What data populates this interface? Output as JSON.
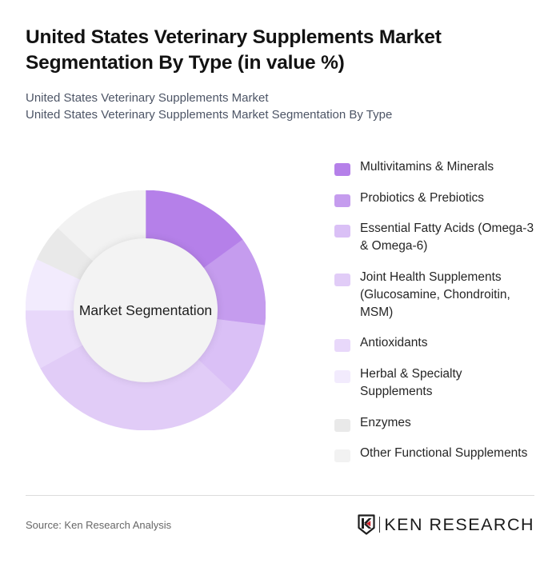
{
  "header": {
    "title": "United States Veterinary Supplements Market Segmentation By Type (in value %)",
    "subtitle_line1": "United States Veterinary Supplements Market",
    "subtitle_line2": "United States Veterinary Supplements Market Segmentation By Type"
  },
  "chart": {
    "center_label": "Market Segmentation"
  },
  "legend": {
    "items": [
      {
        "label": "Multivitamins & Minerals",
        "color": "#b580e9"
      },
      {
        "label": "Probiotics & Prebiotics",
        "color": "#c59cee"
      },
      {
        "label": "Essential Fatty Acids (Omega-3 & Omega-6)",
        "color": "#dac0f6"
      },
      {
        "label": "Joint Health Supplements (Glucosamine, Chondroitin, MSM)",
        "color": "#e1ccf7"
      },
      {
        "label": "Antioxidants",
        "color": "#e8d8fa"
      },
      {
        "label": "Herbal & Specialty Supplements",
        "color": "#f2ebfd"
      },
      {
        "label": "Enzymes",
        "color": "#e9e9e9"
      },
      {
        "label": "Other Functional Supplements",
        "color": "#f2f2f2"
      }
    ]
  },
  "footer": {
    "source": "Source: Ken Research Analysis",
    "brand": "KEN RESEARCH",
    "brand_accent_color": "#d0202a"
  },
  "chart_data": {
    "type": "pie",
    "variant": "donut",
    "title": "United States Veterinary Supplements Market Segmentation By Type (in value %)",
    "subtitle": "United States Veterinary Supplements Market Segmentation By Type",
    "center_label": "Market Segmentation",
    "categories": [
      "Multivitamins & Minerals",
      "Probiotics & Prebiotics",
      "Essential Fatty Acids (Omega-3 & Omega-6)",
      "Joint Health Supplements (Glucosamine, Chondroitin, MSM)",
      "Antioxidants",
      "Herbal & Specialty Supplements",
      "Enzymes",
      "Other Functional Supplements"
    ],
    "values": [
      15,
      12,
      10,
      30,
      8,
      7,
      5,
      13
    ],
    "unit": "%",
    "colors": [
      "#b580e9",
      "#c59cee",
      "#dac0f6",
      "#e1ccf7",
      "#e8d8fa",
      "#f2ebfd",
      "#e9e9e9",
      "#f2f2f2"
    ],
    "start_angle": "12 o'clock, clockwise",
    "hole_ratio": 0.6,
    "legend_position": "right"
  }
}
